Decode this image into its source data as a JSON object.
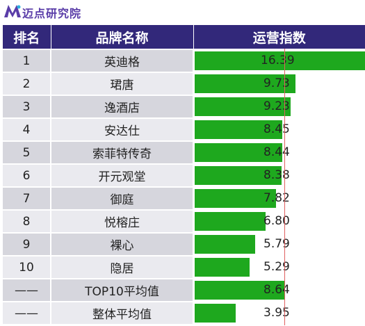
{
  "logo": {
    "text": "迈点研究院",
    "icon": "md-logo-icon",
    "color": "#5a3da8"
  },
  "chart_data": {
    "type": "table",
    "columns": [
      "排名",
      "品牌名称",
      "运营指数"
    ],
    "rows": [
      {
        "rank": "1",
        "brand": "英迪格",
        "value": 16.39
      },
      {
        "rank": "2",
        "brand": "珺唐",
        "value": 9.73
      },
      {
        "rank": "3",
        "brand": "逸酒店",
        "value": 9.23
      },
      {
        "rank": "4",
        "brand": "安达仕",
        "value": 8.45
      },
      {
        "rank": "5",
        "brand": "索菲特传奇",
        "value": 8.44
      },
      {
        "rank": "6",
        "brand": "开元观堂",
        "value": 8.38
      },
      {
        "rank": "7",
        "brand": "御庭",
        "value": 7.82
      },
      {
        "rank": "8",
        "brand": "悦榕庄",
        "value": 6.8
      },
      {
        "rank": "9",
        "brand": "裸心",
        "value": 5.79
      },
      {
        "rank": "10",
        "brand": "隐居",
        "value": 5.29
      },
      {
        "rank": "——",
        "brand": "TOP10平均值",
        "value": 8.64
      },
      {
        "rank": "——",
        "brand": "整体平均值",
        "value": 3.95
      }
    ],
    "value_labels": [
      "16.39",
      "9.73",
      "9.23",
      "8.45",
      "8.44",
      "8.38",
      "7.82",
      "6.80",
      "5.79",
      "5.29",
      "8.64",
      "3.95"
    ],
    "bar_max": 16.39,
    "reference_line_value": 8.64,
    "colors": {
      "header": "#32287a",
      "bar": "#1ea81e",
      "reference_line": "#e06060",
      "row_odd": "#d6d6dd",
      "row_even": "#eaeaef"
    }
  }
}
